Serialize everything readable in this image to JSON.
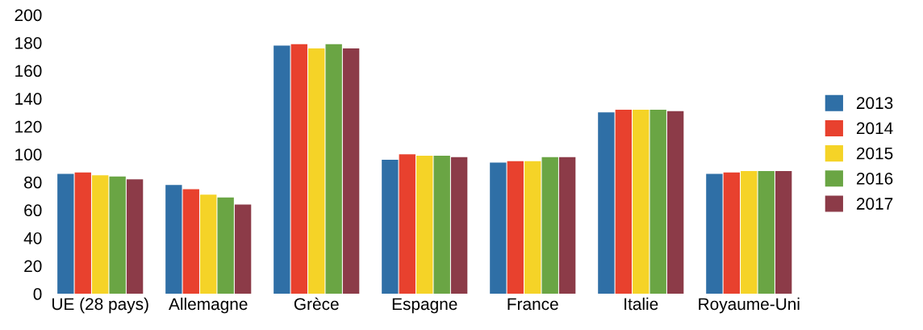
{
  "chart_data": {
    "type": "bar",
    "categories": [
      "UE (28 pays)",
      "Allemagne",
      "Grèce",
      "Espagne",
      "France",
      "Italie",
      "Royaume-Uni"
    ],
    "series": [
      {
        "name": "2013",
        "color": "#2f6fa6",
        "values": [
          86,
          78,
          178,
          96,
          94,
          130,
          86
        ]
      },
      {
        "name": "2014",
        "color": "#e8412e",
        "values": [
          87,
          75,
          179,
          100,
          95,
          132,
          87
        ]
      },
      {
        "name": "2015",
        "color": "#f5d327",
        "values": [
          85,
          71,
          176,
          99,
          95,
          132,
          88
        ]
      },
      {
        "name": "2016",
        "color": "#6aa544",
        "values": [
          84,
          69,
          179,
          99,
          98,
          132,
          88
        ]
      },
      {
        "name": "2017",
        "color": "#8c3b48",
        "values": [
          82,
          64,
          176,
          98,
          98,
          131,
          88
        ]
      }
    ],
    "ylim": [
      0,
      200
    ],
    "yticks": [
      0,
      20,
      40,
      60,
      80,
      100,
      120,
      140,
      160,
      180,
      200
    ],
    "grid": false,
    "legend": "right"
  }
}
